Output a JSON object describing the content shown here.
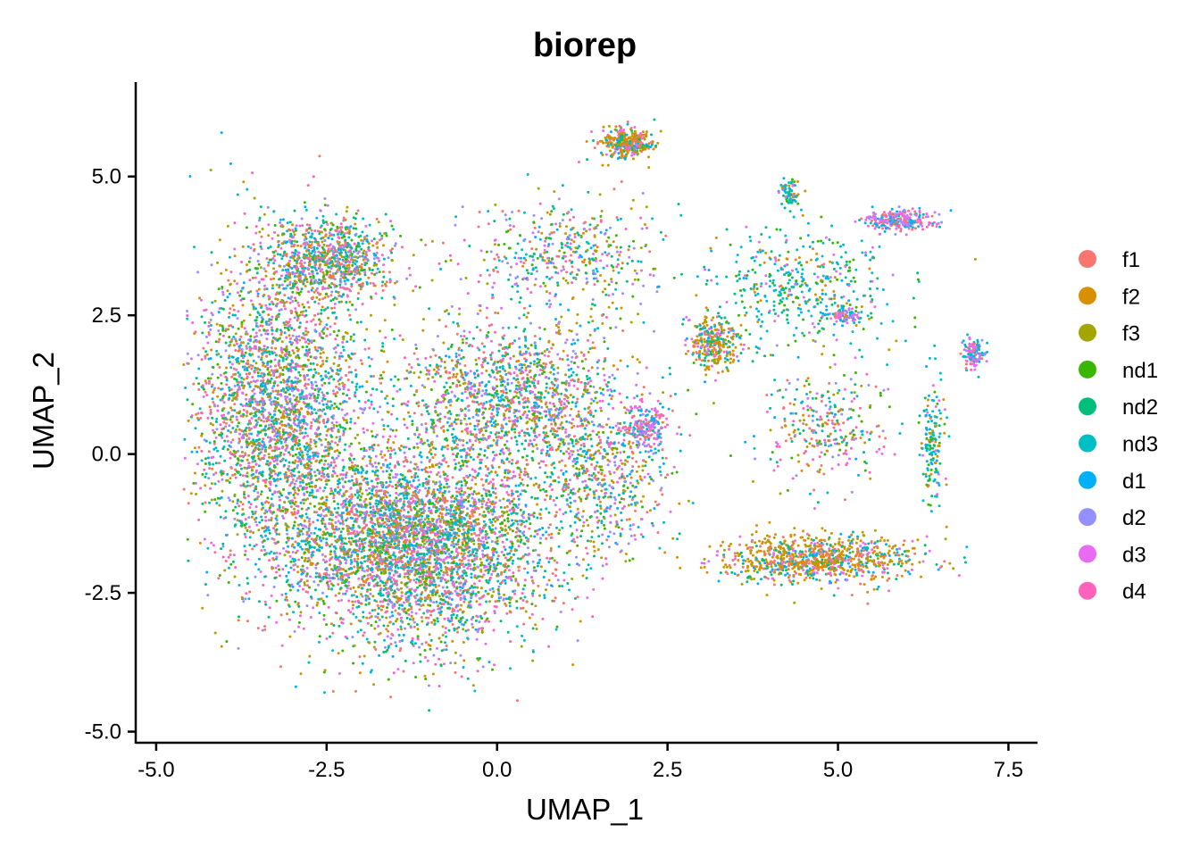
{
  "chart_data": {
    "type": "scatter",
    "title": "biorep",
    "xlabel": "UMAP_1",
    "ylabel": "UMAP_2",
    "xlim": [
      -5.3,
      7.9
    ],
    "ylim": [
      -5.2,
      6.7
    ],
    "x_ticks": [
      -5.0,
      -2.5,
      0.0,
      2.5,
      5.0,
      7.5
    ],
    "x_tick_labels": [
      "-5.0",
      "-2.5",
      "0.0",
      "2.5",
      "5.0",
      "7.5"
    ],
    "y_ticks": [
      -5.0,
      -2.5,
      0.0,
      2.5,
      5.0
    ],
    "y_tick_labels": [
      "-5.0",
      "-2.5",
      "0.0",
      "2.5",
      "5.0"
    ],
    "grid": false,
    "legend_position": "right",
    "series": [
      {
        "name": "f1",
        "color": "#F8766D"
      },
      {
        "name": "f2",
        "color": "#D89000"
      },
      {
        "name": "f3",
        "color": "#A3A500"
      },
      {
        "name": "nd1",
        "color": "#39B600"
      },
      {
        "name": "nd2",
        "color": "#00BF7D"
      },
      {
        "name": "nd3",
        "color": "#00BFC4"
      },
      {
        "name": "d1",
        "color": "#00B0F6"
      },
      {
        "name": "d2",
        "color": "#9590FF"
      },
      {
        "name": "d3",
        "color": "#E76BF3"
      },
      {
        "name": "d4",
        "color": "#FF62BC"
      }
    ],
    "clusters": [
      {
        "center": [
          -1.2,
          -1.6
        ],
        "spread": [
          1.8,
          1.6
        ],
        "n": 4200,
        "mix": "all"
      },
      {
        "center": [
          -3.2,
          0.8
        ],
        "spread": [
          1.1,
          2.4
        ],
        "n": 2600,
        "mix": "all"
      },
      {
        "center": [
          -2.5,
          3.5
        ],
        "spread": [
          0.9,
          0.7
        ],
        "n": 900,
        "mix": "all"
      },
      {
        "center": [
          0.2,
          1.0
        ],
        "spread": [
          1.6,
          1.3
        ],
        "n": 1500,
        "mix": "all"
      },
      {
        "center": [
          1.6,
          -0.5
        ],
        "spread": [
          0.9,
          1.1
        ],
        "n": 500,
        "mix": "all"
      },
      {
        "center": [
          1.9,
          5.6
        ],
        "spread": [
          0.35,
          0.25
        ],
        "n": 350,
        "mix": "f"
      },
      {
        "center": [
          1.0,
          3.6
        ],
        "spread": [
          1.3,
          0.9
        ],
        "n": 450,
        "mix": "all"
      },
      {
        "center": [
          3.2,
          2.0
        ],
        "spread": [
          0.35,
          0.45
        ],
        "n": 300,
        "mix": "f"
      },
      {
        "center": [
          2.2,
          0.5
        ],
        "spread": [
          0.3,
          0.4
        ],
        "n": 200,
        "mix": "d"
      },
      {
        "center": [
          4.7,
          -1.9
        ],
        "spread": [
          1.3,
          0.4
        ],
        "n": 900,
        "mix": "f"
      },
      {
        "center": [
          5.9,
          4.2
        ],
        "spread": [
          0.45,
          0.2
        ],
        "n": 250,
        "mix": "d"
      },
      {
        "center": [
          6.4,
          0.2
        ],
        "spread": [
          0.15,
          1.0
        ],
        "n": 160,
        "mix": "nd"
      },
      {
        "center": [
          7.0,
          1.8
        ],
        "spread": [
          0.15,
          0.25
        ],
        "n": 120,
        "mix": "d"
      },
      {
        "center": [
          4.3,
          4.7
        ],
        "spread": [
          0.12,
          0.25
        ],
        "n": 80,
        "mix": "nd"
      },
      {
        "center": [
          5.1,
          2.5
        ],
        "spread": [
          0.2,
          0.12
        ],
        "n": 80,
        "mix": "d"
      },
      {
        "center": [
          4.5,
          3.0
        ],
        "spread": [
          1.2,
          1.0
        ],
        "n": 450,
        "mix": "nd"
      },
      {
        "center": [
          4.8,
          0.5
        ],
        "spread": [
          0.8,
          1.0
        ],
        "n": 300,
        "mix": "all"
      }
    ]
  }
}
